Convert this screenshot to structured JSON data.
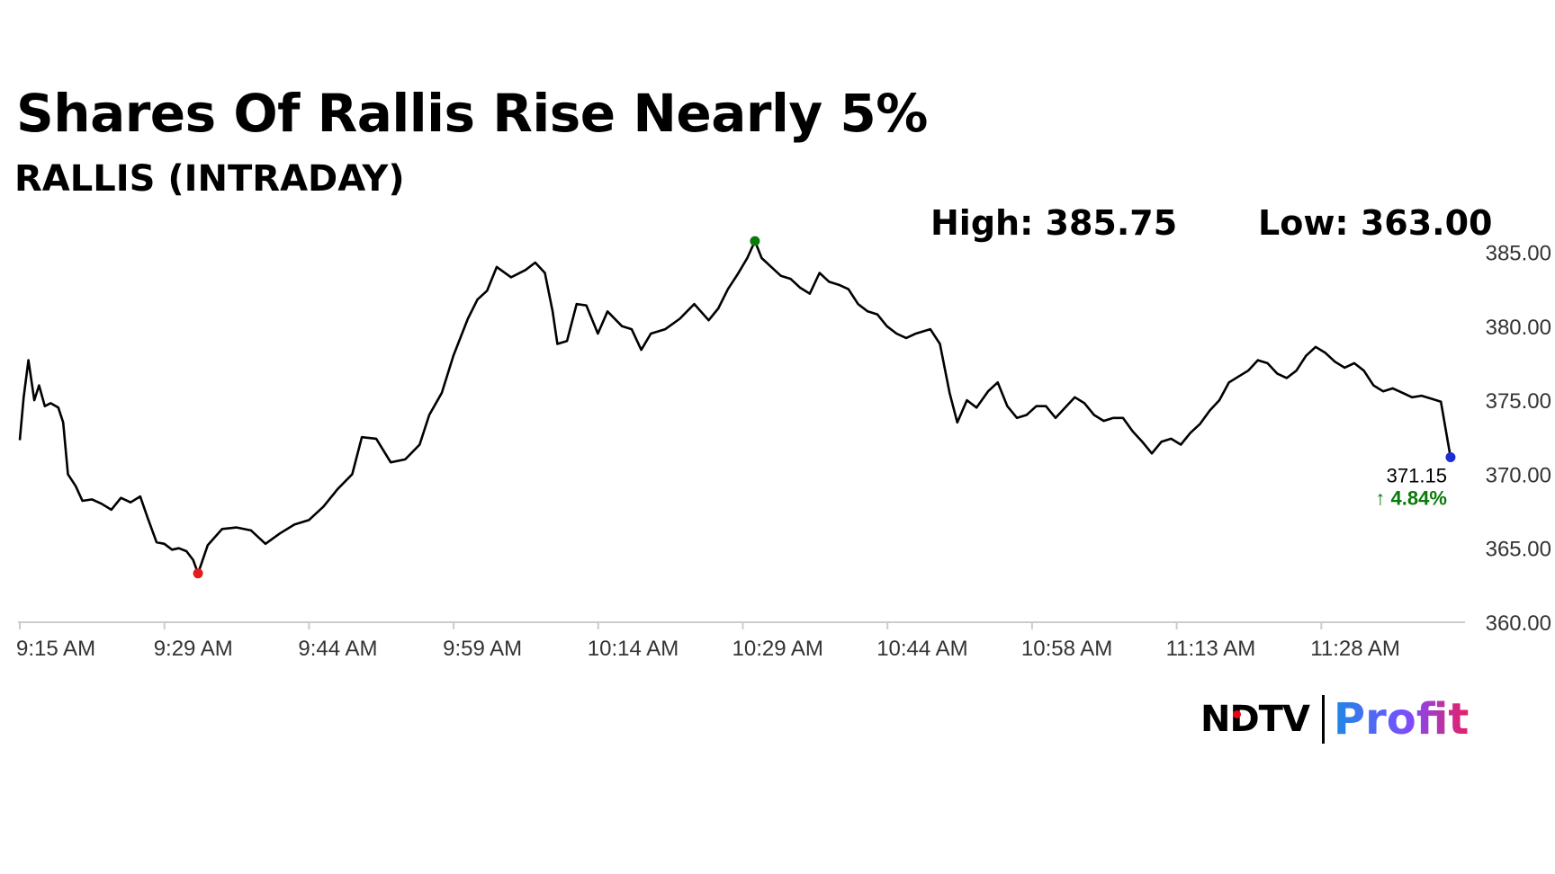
{
  "header": {
    "title": "Shares Of Rallis Rise Nearly 5%",
    "subtitle": "RALLIS (INTRADAY)",
    "high_label": "High: 385.75",
    "low_label": "Low: 363.00"
  },
  "last": {
    "price": "371.15",
    "change": "4.84%",
    "arrow": "↑"
  },
  "logo": {
    "ndtv": "NDTV",
    "profit": "Profit"
  },
  "colors": {
    "line": "#000000",
    "high_marker": "#0a7a0a",
    "low_marker": "#e31b1b",
    "last_marker": "#1b2fd6",
    "change_text": "#0a7a0a",
    "axis": "#cccccc",
    "tick_text": "#333333"
  },
  "chart_data": {
    "type": "line",
    "ylim": [
      360,
      386
    ],
    "yticks": [
      "360.00",
      "365.00",
      "370.00",
      "375.00",
      "380.00",
      "385.00"
    ],
    "xticks": [
      "9:15 AM",
      "9:29 AM",
      "9:44 AM",
      "9:59 AM",
      "10:14 AM",
      "10:29 AM",
      "10:44 AM",
      "10:58 AM",
      "11:13 AM",
      "11:28 AM"
    ],
    "x_range_minutes": [
      0,
      150
    ],
    "series": [
      {
        "points": [
          [
            0,
            372.3
          ],
          [
            0.4,
            375.2
          ],
          [
            0.9,
            377.7
          ],
          [
            1.5,
            375.0
          ],
          [
            2.0,
            376.0
          ],
          [
            2.6,
            374.6
          ],
          [
            3.2,
            374.8
          ],
          [
            4.0,
            374.5
          ],
          [
            4.5,
            373.5
          ],
          [
            5.0,
            370.0
          ],
          [
            5.8,
            369.2
          ],
          [
            6.5,
            368.2
          ],
          [
            7.5,
            368.3
          ],
          [
            8.5,
            368.0
          ],
          [
            9.5,
            367.6
          ],
          [
            10.5,
            368.4
          ],
          [
            11.5,
            368.1
          ],
          [
            12.5,
            368.5
          ],
          [
            13.3,
            367.0
          ],
          [
            14.2,
            365.4
          ],
          [
            15.0,
            365.3
          ],
          [
            15.8,
            364.9
          ],
          [
            16.5,
            365.0
          ],
          [
            17.3,
            364.8
          ],
          [
            18.0,
            364.2
          ],
          [
            18.5,
            363.3
          ],
          [
            19.5,
            365.2
          ],
          [
            21,
            366.3
          ],
          [
            22.5,
            366.4
          ],
          [
            24,
            366.2
          ],
          [
            25.5,
            365.3
          ],
          [
            27,
            366.0
          ],
          [
            28.5,
            366.6
          ],
          [
            30,
            366.9
          ],
          [
            31.5,
            367.8
          ],
          [
            33,
            369.0
          ],
          [
            34.5,
            370.0
          ],
          [
            35.5,
            372.5
          ],
          [
            37,
            372.4
          ],
          [
            38.5,
            370.8
          ],
          [
            40,
            371.0
          ],
          [
            41.5,
            372.0
          ],
          [
            42.5,
            374.0
          ],
          [
            43.8,
            375.5
          ],
          [
            45,
            378.0
          ],
          [
            46.5,
            380.5
          ],
          [
            47.5,
            381.8
          ],
          [
            48.5,
            382.4
          ],
          [
            49.5,
            384.0
          ],
          [
            51,
            383.3
          ],
          [
            52.5,
            383.8
          ],
          [
            53.5,
            384.3
          ],
          [
            54.5,
            383.6
          ],
          [
            55.3,
            381.0
          ],
          [
            55.8,
            378.8
          ],
          [
            56.8,
            379.0
          ],
          [
            57.8,
            381.5
          ],
          [
            58.8,
            381.4
          ],
          [
            60,
            379.5
          ],
          [
            61,
            381.0
          ],
          [
            62.5,
            380.0
          ],
          [
            63.5,
            379.8
          ],
          [
            64.5,
            378.4
          ],
          [
            65.5,
            379.5
          ],
          [
            67,
            379.8
          ],
          [
            68.5,
            380.5
          ],
          [
            70,
            381.5
          ],
          [
            71.5,
            380.4
          ],
          [
            72.5,
            381.2
          ],
          [
            73.5,
            382.5
          ],
          [
            74.5,
            383.5
          ],
          [
            75.5,
            384.6
          ],
          [
            76.3,
            385.75
          ],
          [
            77,
            384.6
          ],
          [
            78,
            384.0
          ],
          [
            79,
            383.4
          ],
          [
            80,
            383.2
          ],
          [
            81,
            382.6
          ],
          [
            82,
            382.2
          ],
          [
            83,
            383.6
          ],
          [
            84,
            383.0
          ],
          [
            85,
            382.8
          ],
          [
            86,
            382.5
          ],
          [
            87,
            381.5
          ],
          [
            88,
            381.0
          ],
          [
            89,
            380.8
          ],
          [
            90,
            380.0
          ],
          [
            91,
            379.5
          ],
          [
            92,
            379.2
          ],
          [
            93,
            379.5
          ],
          [
            94.5,
            379.8
          ],
          [
            95.5,
            378.8
          ],
          [
            96.5,
            375.5
          ],
          [
            97.3,
            373.5
          ],
          [
            98.3,
            375.0
          ],
          [
            99.3,
            374.5
          ],
          [
            100.5,
            375.6
          ],
          [
            101.5,
            376.2
          ],
          [
            102.5,
            374.6
          ],
          [
            103.5,
            373.8
          ],
          [
            104.5,
            374.0
          ],
          [
            105.5,
            374.6
          ],
          [
            106.5,
            374.6
          ],
          [
            107.5,
            373.8
          ],
          [
            108.5,
            374.5
          ],
          [
            109.5,
            375.2
          ],
          [
            110.5,
            374.8
          ],
          [
            111.5,
            374.0
          ],
          [
            112.5,
            373.6
          ],
          [
            113.5,
            373.8
          ],
          [
            114.5,
            373.8
          ],
          [
            115.5,
            372.9
          ],
          [
            116.5,
            372.2
          ],
          [
            117.5,
            371.4
          ],
          [
            118.5,
            372.2
          ],
          [
            119.5,
            372.4
          ],
          [
            120.5,
            372.0
          ],
          [
            121.5,
            372.8
          ],
          [
            122.5,
            373.4
          ],
          [
            123.5,
            374.3
          ],
          [
            124.5,
            375.0
          ],
          [
            125.5,
            376.2
          ],
          [
            126.5,
            376.6
          ],
          [
            127.5,
            377.0
          ],
          [
            128.5,
            377.7
          ],
          [
            129.5,
            377.5
          ],
          [
            130.5,
            376.8
          ],
          [
            131.5,
            376.5
          ],
          [
            132.5,
            377.0
          ],
          [
            133.5,
            378.0
          ],
          [
            134.5,
            378.6
          ],
          [
            135.5,
            378.2
          ],
          [
            136.5,
            377.6
          ],
          [
            137.5,
            377.2
          ],
          [
            138.5,
            377.5
          ],
          [
            139.5,
            377.0
          ],
          [
            140.5,
            376.0
          ],
          [
            141.5,
            375.6
          ],
          [
            142.5,
            375.8
          ],
          [
            143.5,
            375.5
          ],
          [
            144.5,
            375.2
          ],
          [
            145.5,
            375.3
          ],
          [
            146.5,
            375.1
          ],
          [
            147.5,
            374.9
          ],
          [
            148.5,
            371.15
          ]
        ]
      }
    ]
  }
}
